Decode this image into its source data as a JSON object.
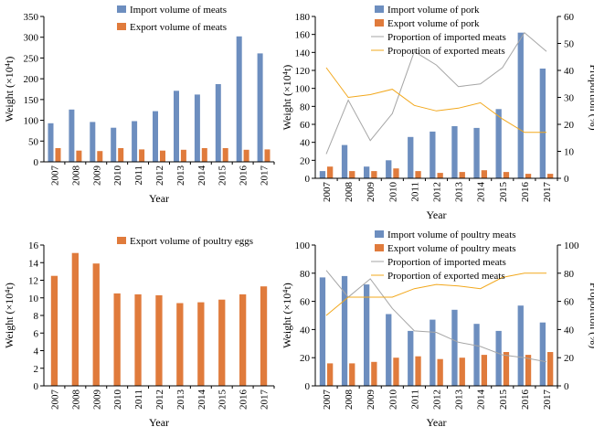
{
  "colors": {
    "blue": "#6d8ebf",
    "orange": "#e07b3c",
    "gray": "#a6a6a6",
    "gold": "#f2a81d",
    "axis": "#000000"
  },
  "chart_data": [
    {
      "id": "p1",
      "type": "bar",
      "xlabel": "Year",
      "ylabel": "Weight (×10⁴t)",
      "categories": [
        "2007",
        "2008",
        "2009",
        "2010",
        "2011",
        "2012",
        "2013",
        "2014",
        "2015",
        "2016",
        "2017"
      ],
      "ylim": [
        0,
        350
      ],
      "yticks": [
        0,
        50,
        100,
        150,
        200,
        250,
        300,
        350
      ],
      "series": [
        {
          "name": "Import volume of meats",
          "color": "blue",
          "values": [
            93,
            126,
            96,
            82,
            98,
            122,
            171,
            162,
            187,
            302,
            261
          ]
        },
        {
          "name": "Export volume of meats",
          "color": "orange",
          "values": [
            33,
            27,
            26,
            33,
            30,
            27,
            29,
            33,
            33,
            29,
            30
          ]
        }
      ],
      "legend": "top-left"
    },
    {
      "id": "p2",
      "type": "bar",
      "xlabel": "Year",
      "ylabel": "Weight (×10⁴t)",
      "y2label": "Proportion (%)",
      "categories": [
        "2007",
        "2008",
        "2009",
        "2010",
        "2011",
        "2012",
        "2013",
        "2014",
        "2015",
        "2016",
        "2017"
      ],
      "ylim": [
        0,
        180
      ],
      "yticks": [
        0,
        20,
        40,
        60,
        80,
        100,
        120,
        140,
        160,
        180
      ],
      "y2lim": [
        0,
        60
      ],
      "y2ticks": [
        0,
        10,
        20,
        30,
        40,
        50,
        60
      ],
      "series": [
        {
          "name": "Import volume of pork",
          "color": "blue",
          "values": [
            8,
            37,
            13,
            20,
            46,
            52,
            58,
            56,
            77,
            162,
            122
          ]
        },
        {
          "name": "Export volume of pork",
          "color": "orange",
          "values": [
            13,
            8,
            8,
            11,
            8,
            6,
            7,
            9,
            7,
            5,
            5
          ]
        }
      ],
      "lines": [
        {
          "name": "Proportion of imported meats",
          "color": "gray",
          "values": [
            9,
            29,
            14,
            24,
            47,
            42,
            34,
            35,
            41,
            54,
            47
          ]
        },
        {
          "name": "Proportion of exported meats",
          "color": "gold",
          "values": [
            41,
            30,
            31,
            33,
            27,
            25,
            26,
            28,
            22,
            17,
            17
          ]
        }
      ],
      "legend": "top-left"
    },
    {
      "id": "p3",
      "type": "bar",
      "xlabel": "Year",
      "ylabel": "Weight (×10⁴t)",
      "categories": [
        "2007",
        "2008",
        "2009",
        "2010",
        "2011",
        "2012",
        "2013",
        "2014",
        "2015",
        "2016",
        "2017"
      ],
      "ylim": [
        0,
        16
      ],
      "yticks": [
        0,
        2,
        4,
        6,
        8,
        10,
        12,
        14,
        16
      ],
      "series": [
        {
          "name": "Export volume of poultry eggs",
          "color": "orange",
          "values": [
            12.5,
            15.1,
            13.9,
            10.5,
            10.4,
            10.3,
            9.4,
            9.5,
            9.8,
            10.4,
            11.3
          ]
        }
      ],
      "legend": "top"
    },
    {
      "id": "p4",
      "type": "bar",
      "xlabel": "Year",
      "ylabel": "Weight (×10⁴t)",
      "y2label": "Proportion (%)",
      "categories": [
        "2007",
        "2008",
        "2009",
        "2010",
        "2011",
        "2012",
        "2013",
        "2014",
        "2015",
        "2016",
        "2017"
      ],
      "ylim": [
        0,
        100
      ],
      "yticks": [
        0,
        20,
        40,
        60,
        80,
        100
      ],
      "y2lim": [
        0,
        100
      ],
      "y2ticks": [
        0,
        20,
        40,
        60,
        80,
        100
      ],
      "series": [
        {
          "name": "Import volume of poultry meats",
          "color": "blue",
          "values": [
            77,
            78,
            72,
            51,
            39,
            47,
            54,
            44,
            39,
            57,
            45
          ]
        },
        {
          "name": "Export volume of poultry meats",
          "color": "orange",
          "values": [
            16,
            16,
            17,
            20,
            21,
            19,
            20,
            22,
            24,
            22,
            24
          ]
        }
      ],
      "lines": [
        {
          "name": "Proportion of imported meats",
          "color": "gray",
          "values": [
            82,
            63,
            76,
            55,
            39,
            38,
            31,
            28,
            22,
            20,
            17
          ]
        },
        {
          "name": "Proportion of exported meats",
          "color": "gold",
          "values": [
            50,
            63,
            63,
            63,
            69,
            72,
            71,
            69,
            77,
            80,
            80
          ]
        }
      ],
      "legend": "top"
    }
  ]
}
